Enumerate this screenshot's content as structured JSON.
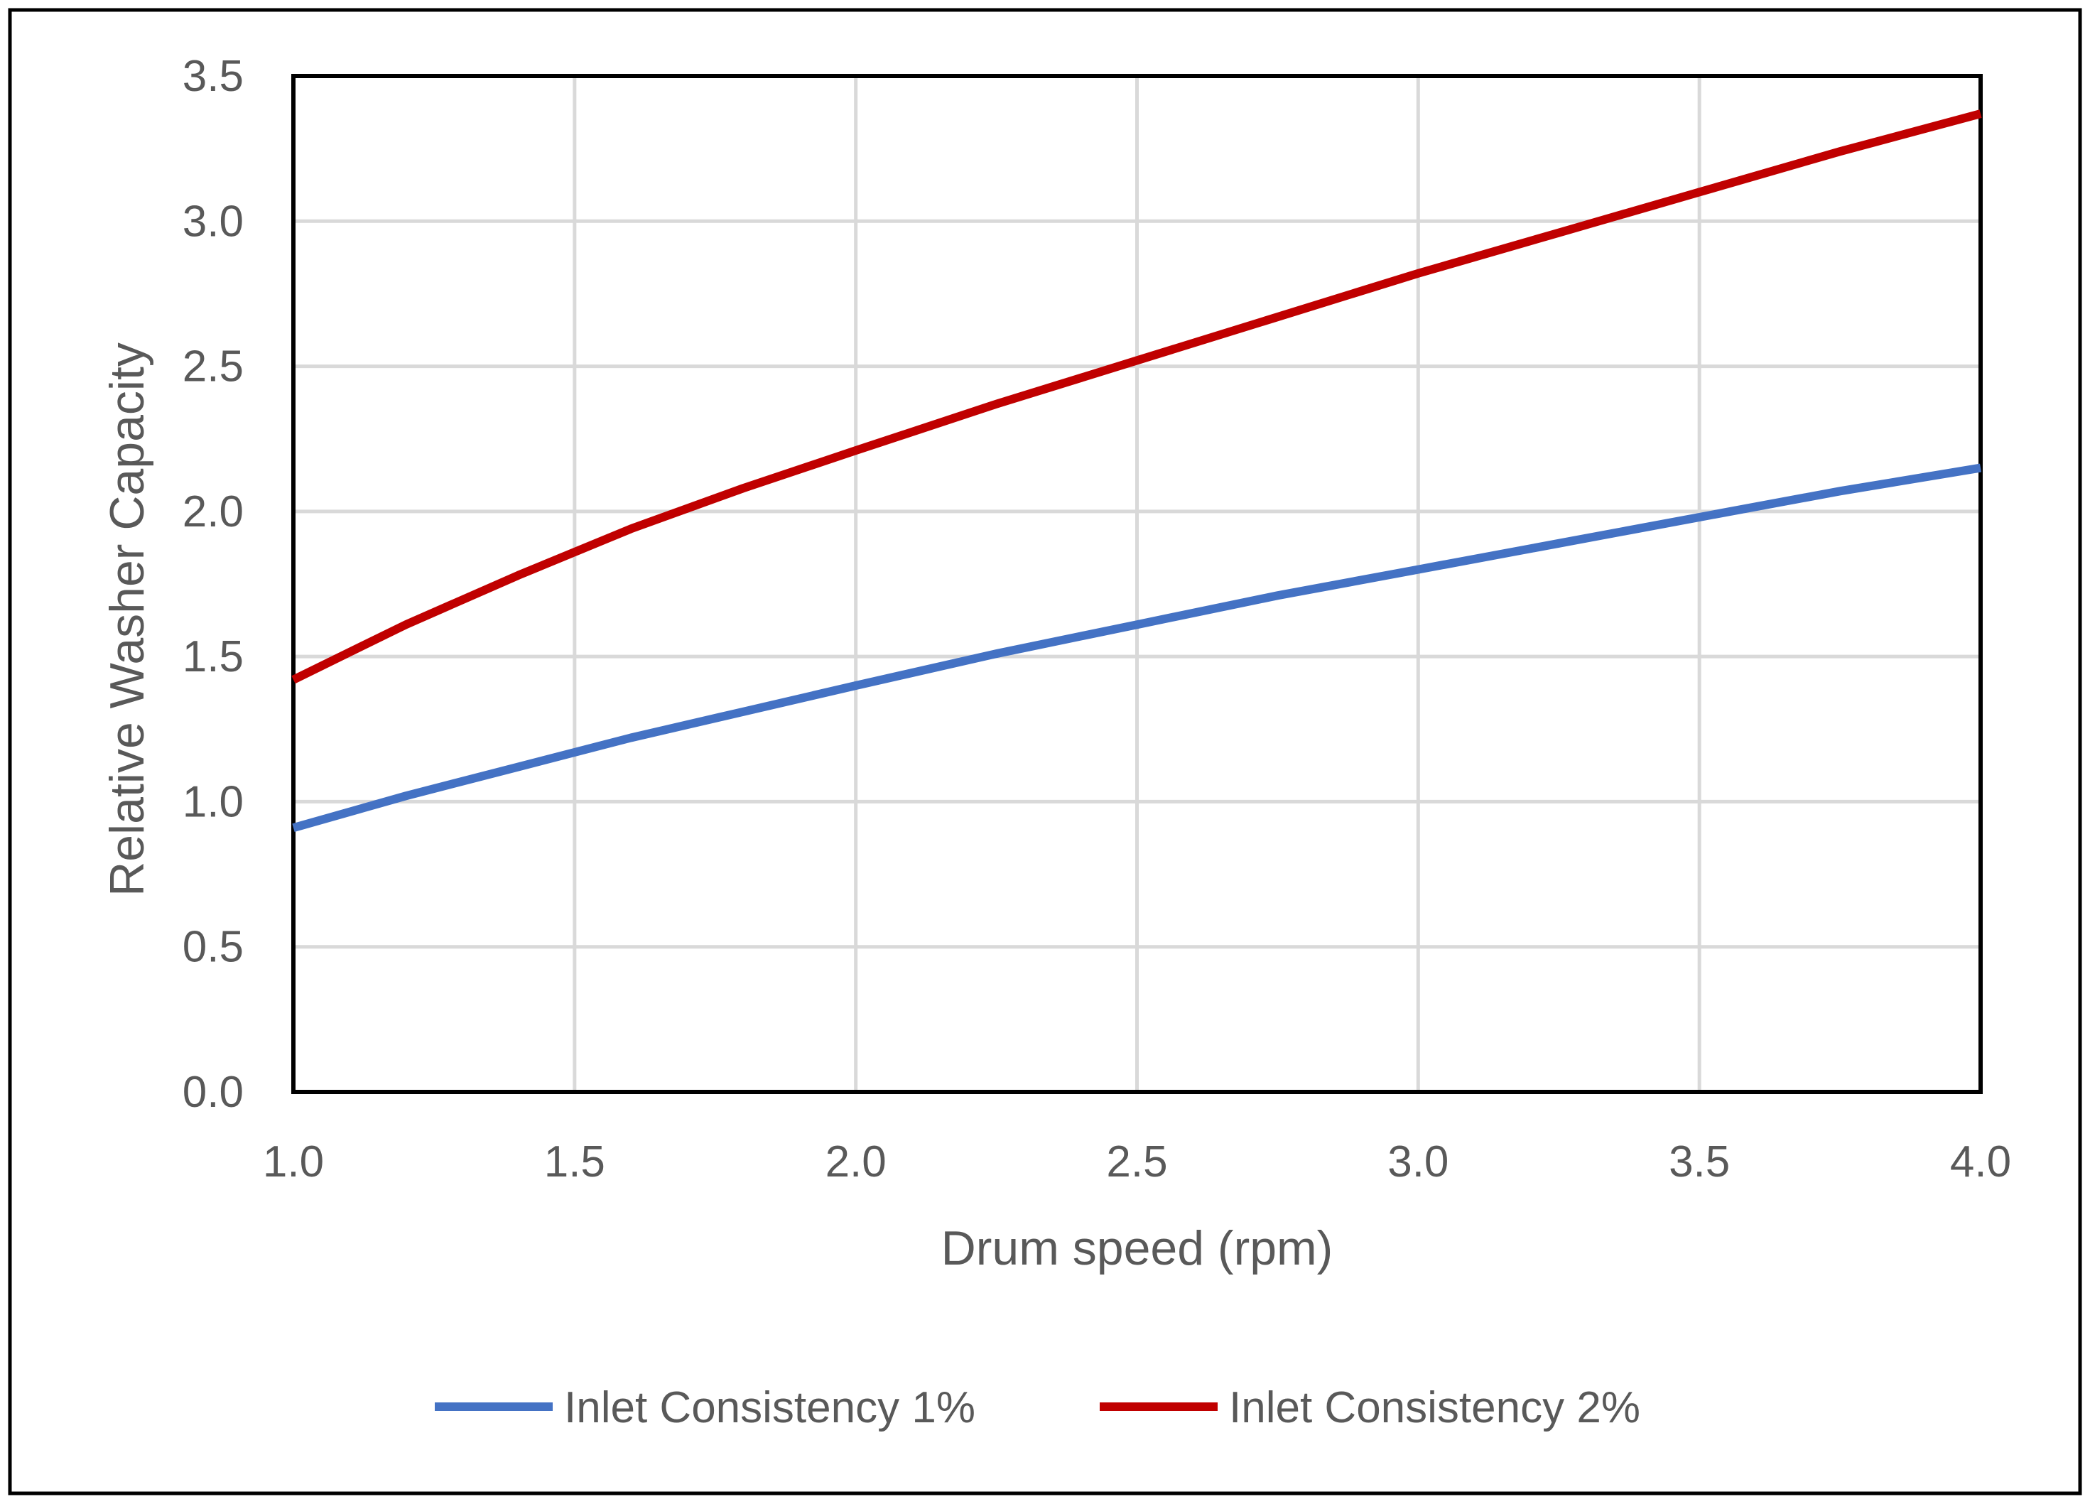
{
  "chart_data": {
    "type": "line",
    "title": "",
    "xlabel": "Drum speed  (rpm)",
    "ylabel": "Relative Washer Capacity",
    "xlim": [
      1.0,
      4.0
    ],
    "ylim": [
      0.0,
      3.5
    ],
    "xticks": [
      "1.0",
      "1.5",
      "2.0",
      "2.5",
      "3.0",
      "3.5",
      "4.0"
    ],
    "yticks": [
      "0.0",
      "0.5",
      "1.0",
      "1.5",
      "2.0",
      "2.5",
      "3.0",
      "3.5"
    ],
    "grid": true,
    "legend_position": "bottom",
    "series": [
      {
        "name": "Inlet Consistency 1%",
        "color": "#4472C4",
        "x": [
          1.0,
          1.2,
          1.4,
          1.6,
          1.8,
          2.0,
          2.25,
          2.5,
          2.75,
          3.0,
          3.25,
          3.5,
          3.75,
          4.0
        ],
        "y": [
          0.91,
          1.02,
          1.12,
          1.22,
          1.31,
          1.4,
          1.51,
          1.61,
          1.71,
          1.8,
          1.89,
          1.98,
          2.07,
          2.15
        ]
      },
      {
        "name": "Inlet Consistency 2%",
        "color": "#C00000",
        "x": [
          1.0,
          1.2,
          1.4,
          1.6,
          1.8,
          2.0,
          2.25,
          2.5,
          2.75,
          3.0,
          3.25,
          3.5,
          3.75,
          4.0
        ],
        "y": [
          1.42,
          1.61,
          1.78,
          1.94,
          2.08,
          2.21,
          2.37,
          2.52,
          2.67,
          2.82,
          2.96,
          3.1,
          3.24,
          3.37
        ]
      }
    ]
  }
}
